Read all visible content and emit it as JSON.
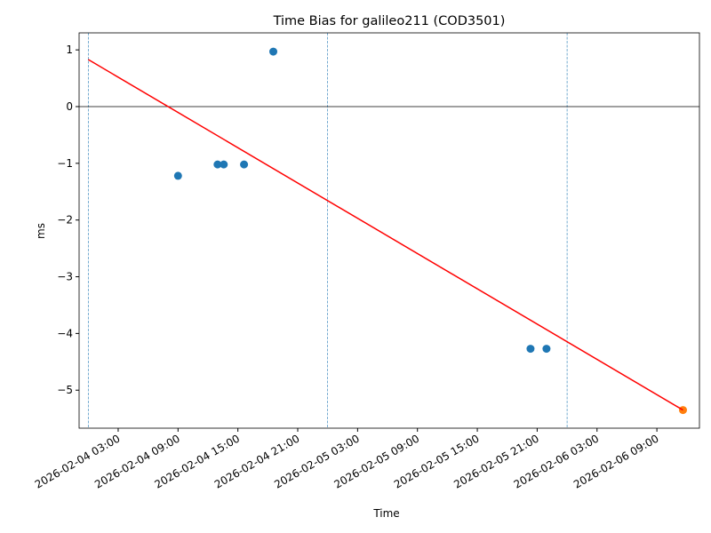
{
  "chart_data": {
    "type": "scatter",
    "title": "Time Bias for galileo211 (COD3501)",
    "x_label": "Time",
    "y_label": "ms",
    "xlim": [
      "2026-02-03 23:05",
      "2026-02-06 13:16"
    ],
    "xticks": [
      "2026-02-04 03:00",
      "2026-02-04 09:00",
      "2026-02-04 15:00",
      "2026-02-04 21:00",
      "2026-02-05 03:00",
      "2026-02-05 09:00",
      "2026-02-05 15:00",
      "2026-02-05 21:00",
      "2026-02-06 03:00",
      "2026-02-06 09:00"
    ],
    "ylim": [
      -5.67,
      1.3
    ],
    "yticks": [
      {
        "value": -5,
        "label": "−5"
      },
      {
        "value": -4,
        "label": "−4"
      },
      {
        "value": -3,
        "label": "−3"
      },
      {
        "value": -2,
        "label": "−2"
      },
      {
        "value": -1,
        "label": "−1"
      },
      0,
      1
    ],
    "hline": 0,
    "hline_color": "#000000",
    "vlines": [
      "2026-02-04 00:00",
      "2026-02-05 00:00",
      "2026-02-06 00:00"
    ],
    "vline_color": "#1f77b4",
    "series": [
      {
        "style": "marker",
        "color": "#1f77b4",
        "x": [
          "2026-02-04 09:00",
          "2026-02-04 12:58",
          "2026-02-04 13:35",
          "2026-02-04 15:37",
          "2026-02-04 18:33",
          "2026-02-05 20:20",
          "2026-02-05 21:56"
        ],
        "values": [
          -1.22,
          -1.02,
          -1.02,
          -1.02,
          0.97,
          -4.27,
          -4.27
        ]
      },
      {
        "style": "marker",
        "color": "#ff7f0e",
        "x": [
          "2026-02-06 11:37"
        ],
        "values": [
          -5.35
        ]
      },
      {
        "style": "line",
        "color": "#ff0000",
        "x": [
          "2026-02-04 00:00",
          "2026-02-06 11:37"
        ],
        "values": [
          0.83,
          -5.35
        ]
      }
    ]
  }
}
